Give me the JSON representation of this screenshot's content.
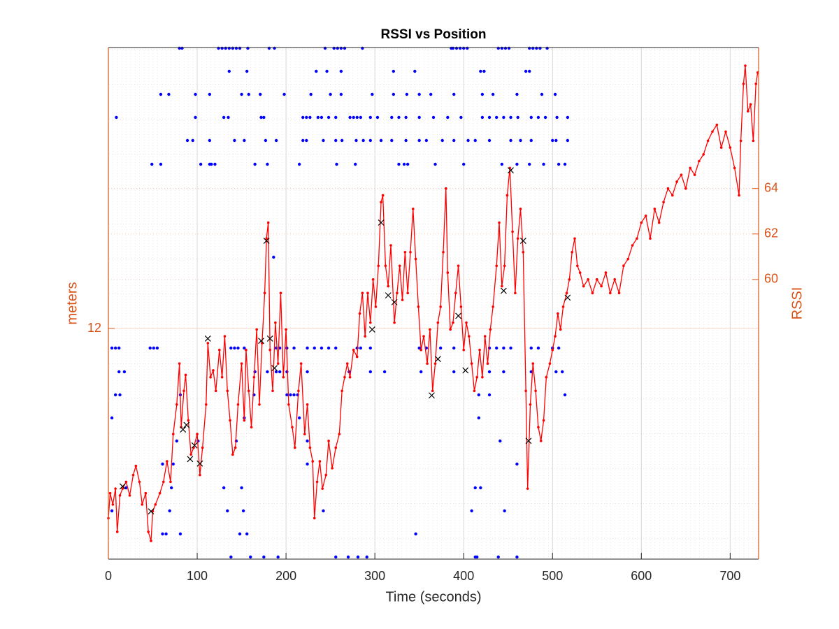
{
  "chart_data": {
    "type": "line",
    "title": "RSSI vs Position",
    "xlabel": "Time (seconds)",
    "ylabel": "meters",
    "y2label": "RSSI",
    "xlim": [
      0,
      732
    ],
    "xticks": [
      0,
      100,
      200,
      300,
      400,
      500,
      600,
      700
    ],
    "ylim": [
      5.4,
      20.04
    ],
    "yticks": [
      12
    ],
    "y2lim": [
      47.7,
      70.2
    ],
    "y2ticks": [
      60,
      62,
      64
    ],
    "grid": true,
    "axis_color": "#d95319",
    "series": [
      {
        "type": "line",
        "axis": "y2",
        "color": "#ff0000",
        "x": [
          0,
          2,
          5,
          8,
          10,
          13,
          16,
          20,
          24,
          28,
          31,
          35,
          38,
          42,
          45,
          48,
          50,
          53,
          58,
          62,
          66,
          70,
          73,
          77,
          80,
          82,
          85,
          87,
          90,
          93,
          96,
          100,
          103,
          106,
          110,
          112,
          115,
          118,
          121,
          125,
          128,
          131,
          134,
          137,
          140,
          143,
          146,
          150,
          153,
          155,
          158,
          161,
          164,
          167,
          170,
          173,
          176,
          178,
          180,
          182,
          185,
          188,
          191,
          194,
          197,
          200,
          203,
          207,
          210,
          214,
          217,
          221,
          224,
          227,
          230,
          232,
          235,
          238,
          241,
          245,
          248,
          252,
          256,
          260,
          263,
          266,
          269,
          272,
          276,
          280,
          283,
          286,
          289,
          292,
          295,
          298,
          301,
          304,
          307,
          309,
          312,
          315,
          318,
          322,
          325,
          328,
          331,
          334,
          337,
          340,
          343,
          346,
          349,
          352,
          355,
          359,
          362,
          365,
          368,
          371,
          374,
          377,
          380,
          382,
          385,
          388,
          391,
          394,
          397,
          400,
          403,
          406,
          409,
          412,
          415,
          418,
          421,
          424,
          427,
          430,
          433,
          437,
          440,
          443,
          446,
          449,
          452,
          455,
          458,
          461,
          464,
          467,
          470,
          472,
          475,
          478,
          481,
          484,
          487,
          490,
          493,
          497,
          500,
          503,
          506,
          509,
          512,
          516,
          519,
          522,
          525,
          528,
          531,
          535,
          540,
          545,
          550,
          555,
          560,
          565,
          570,
          575,
          580,
          585,
          590,
          595,
          600,
          605,
          610,
          615,
          620,
          625,
          630,
          635,
          640,
          645,
          650,
          655,
          660,
          665,
          670,
          675,
          680,
          685,
          690,
          695,
          700,
          705,
          710,
          712,
          715,
          717,
          720,
          723,
          726,
          729,
          731
        ],
        "values": [
          49.5,
          50.6,
          50.1,
          50.8,
          48.9,
          50.5,
          50.8,
          51.1,
          50.5,
          51.4,
          51.8,
          51.1,
          50.1,
          50.6,
          48.9,
          48.5,
          49.8,
          50.1,
          50.6,
          51.1,
          52.0,
          51.1,
          53.2,
          54.5,
          56.3,
          53.5,
          55.1,
          55.8,
          53.8,
          52.3,
          52.6,
          53.2,
          51.4,
          52.6,
          54.5,
          57.2,
          55.7,
          56.0,
          55.1,
          56.9,
          55.7,
          57.5,
          55.1,
          53.8,
          52.3,
          52.6,
          54.5,
          56.3,
          53.8,
          56.9,
          55.1,
          53.5,
          55.7,
          57.8,
          54.5,
          57.2,
          59.4,
          61.8,
          62.5,
          56.9,
          55.1,
          58.1,
          56.3,
          59.4,
          55.7,
          57.8,
          54.5,
          53.5,
          52.6,
          55.1,
          56.3,
          53.2,
          54.5,
          52.6,
          52.0,
          49.5,
          51.1,
          52.0,
          50.8,
          51.4,
          52.9,
          51.7,
          52.6,
          53.2,
          55.1,
          55.7,
          56.3,
          55.7,
          56.9,
          56.6,
          58.5,
          59.4,
          57.5,
          59.4,
          58.1,
          60.0,
          58.8,
          60.6,
          63.4,
          63.7,
          60.6,
          59.7,
          61.5,
          58.1,
          59.4,
          60.6,
          59.1,
          61.2,
          59.4,
          61.2,
          63.1,
          60.9,
          58.8,
          56.9,
          57.5,
          56.3,
          57.8,
          55.1,
          56.3,
          58.1,
          58.8,
          61.2,
          64.0,
          60.3,
          57.8,
          58.1,
          59.4,
          60.6,
          58.8,
          56.9,
          58.1,
          57.5,
          56.3,
          55.1,
          55.7,
          56.9,
          55.7,
          57.5,
          56.3,
          57.8,
          58.8,
          60.6,
          62.5,
          59.7,
          60.6,
          63.7,
          64.9,
          62.1,
          59.4,
          61.8,
          63.1,
          61.2,
          55.1,
          50.8,
          54.5,
          56.3,
          55.1,
          53.5,
          52.9,
          53.8,
          55.7,
          56.3,
          56.9,
          57.5,
          58.5,
          57.8,
          58.8,
          59.4,
          60.0,
          61.2,
          61.8,
          60.6,
          60.3,
          59.7,
          60.0,
          59.4,
          60.0,
          59.7,
          60.3,
          59.4,
          60.0,
          59.4,
          60.6,
          60.9,
          61.5,
          61.8,
          62.5,
          62.8,
          61.8,
          63.1,
          62.5,
          63.4,
          64.0,
          63.7,
          64.3,
          64.6,
          64.0,
          64.9,
          64.6,
          65.2,
          65.5,
          66.1,
          66.5,
          66.8,
          65.8,
          66.5,
          65.8,
          64.9,
          63.7,
          66.1,
          68.6,
          69.4,
          67.4,
          67.7,
          66.1,
          68.6,
          69.1
        ]
      },
      {
        "type": "scatter",
        "marker": "x",
        "axis": "y2",
        "color": "#000000",
        "x": [
          16,
          48,
          84,
          88,
          92,
          97,
          103,
          112,
          172,
          178,
          182,
          187,
          297,
          307,
          315,
          322,
          364,
          371,
          394,
          402,
          445,
          453,
          467,
          473,
          517
        ],
        "values": [
          50.9,
          49.8,
          53.4,
          53.6,
          52.1,
          52.7,
          51.9,
          57.4,
          57.3,
          61.7,
          57.4,
          56.1,
          57.8,
          62.5,
          59.3,
          59.0,
          54.9,
          56.5,
          58.4,
          56.0,
          59.5,
          64.8,
          61.7,
          52.9,
          59.2
        ]
      },
      {
        "type": "scatter",
        "marker": "dot",
        "axis": "y",
        "color": "#0000ff",
        "x": [
          80,
          83,
          124,
          128,
          132,
          136,
          140,
          144,
          148,
          157,
          181,
          187,
          244,
          254,
          258,
          262,
          266,
          286,
          386,
          388,
          392,
          396,
          400,
          404,
          439,
          443,
          447,
          451,
          474,
          478,
          482,
          486,
          494,
          136,
          156,
          234,
          246,
          262,
          321,
          345,
          419,
          423,
          470,
          474,
          59,
          68,
          98,
          114,
          150,
          158,
          171,
          198,
          228,
          250,
          262,
          297,
          321,
          336,
          350,
          363,
          389,
          421,
          433,
          460,
          488,
          503,
          9,
          98,
          130,
          135,
          172,
          175,
          219,
          223,
          227,
          236,
          240,
          248,
          256,
          272,
          276,
          280,
          284,
          295,
          303,
          319,
          327,
          335,
          350,
          366,
          382,
          397,
          421,
          429,
          437,
          445,
          453,
          461,
          476,
          484,
          492,
          505,
          517,
          89,
          95,
          114,
          142,
          153,
          177,
          189,
          219,
          223,
          242,
          256,
          263,
          279,
          287,
          295,
          307,
          319,
          335,
          350,
          358,
          376,
          389,
          405,
          413,
          429,
          453,
          464,
          476,
          500,
          504,
          517,
          49,
          59,
          104,
          114,
          116,
          120,
          165,
          179,
          215,
          257,
          278,
          327,
          333,
          337,
          368,
          400,
          443,
          460,
          474,
          490,
          507,
          514,
          186,
          4,
          8,
          12,
          47,
          51,
          55,
          138,
          142,
          146,
          153,
          189,
          193,
          201,
          209,
          224,
          232,
          240,
          248,
          256,
          280,
          284,
          295,
          350,
          358,
          374,
          389,
          429,
          437,
          445,
          453,
          476,
          484,
          500,
          507,
          12,
          18,
          165,
          179,
          189,
          193,
          201,
          224,
          271,
          295,
          311,
          352,
          389,
          429,
          445,
          476,
          504,
          511,
          8,
          13,
          81,
          164,
          201,
          205,
          209,
          213,
          417,
          429,
          514,
          4,
          153,
          215,
          417,
          77,
          101,
          144,
          224,
          441,
          61,
          73,
          224,
          460,
          20,
          71,
          130,
          150,
          413,
          419,
          4,
          69,
          134,
          152,
          242,
          409,
          446,
          61,
          65,
          81,
          148,
          156,
          346,
          138,
          160,
          175,
          191,
          256,
          270,
          281,
          291,
          413,
          415,
          439,
          460
        ],
        "values": [
          20.02,
          20.02,
          20.02,
          20.02,
          20.02,
          20.02,
          20.02,
          20.02,
          20.02,
          20.02,
          20.02,
          20.02,
          20.02,
          20.02,
          20.02,
          20.02,
          20.02,
          20.02,
          20.02,
          20.02,
          20.02,
          20.02,
          20.02,
          20.02,
          20.02,
          20.02,
          20.02,
          20.02,
          20.02,
          20.02,
          20.02,
          20.02,
          20.02,
          19.36,
          19.36,
          19.36,
          19.36,
          19.36,
          19.36,
          19.36,
          19.36,
          19.36,
          19.36,
          19.36,
          18.7,
          18.7,
          18.7,
          18.7,
          18.7,
          18.7,
          18.7,
          18.7,
          18.7,
          18.7,
          18.7,
          18.7,
          18.7,
          18.7,
          18.7,
          18.7,
          18.7,
          18.7,
          18.7,
          18.7,
          18.7,
          18.7,
          18.04,
          18.04,
          18.04,
          18.04,
          18.04,
          18.04,
          18.04,
          18.04,
          18.04,
          18.04,
          18.04,
          18.04,
          18.04,
          18.04,
          18.04,
          18.04,
          18.04,
          18.04,
          18.04,
          18.04,
          18.04,
          18.04,
          18.04,
          18.04,
          18.04,
          18.04,
          18.04,
          18.04,
          18.04,
          18.04,
          18.04,
          18.04,
          18.04,
          18.04,
          18.04,
          18.04,
          18.04,
          17.38,
          17.38,
          17.38,
          17.38,
          17.38,
          17.38,
          17.38,
          17.38,
          17.38,
          17.38,
          17.38,
          17.38,
          17.38,
          17.38,
          17.38,
          17.38,
          17.38,
          17.38,
          17.38,
          17.38,
          17.38,
          17.38,
          17.38,
          17.38,
          17.38,
          17.38,
          17.38,
          17.38,
          17.38,
          17.38,
          17.38,
          16.7,
          16.7,
          16.7,
          16.7,
          16.7,
          16.7,
          16.7,
          16.7,
          16.7,
          16.7,
          16.7,
          16.7,
          16.7,
          16.7,
          16.7,
          16.7,
          16.7,
          16.7,
          16.7,
          16.7,
          16.7,
          16.7,
          14.04,
          11.44,
          11.44,
          11.44,
          11.44,
          11.44,
          11.44,
          11.44,
          11.44,
          11.44,
          11.44,
          11.44,
          11.44,
          11.44,
          11.44,
          11.44,
          11.44,
          11.44,
          11.44,
          11.44,
          11.44,
          11.44,
          11.44,
          11.44,
          11.44,
          11.44,
          11.44,
          11.44,
          11.44,
          11.44,
          11.44,
          11.44,
          11.44,
          11.44,
          11.44,
          10.76,
          10.76,
          10.76,
          10.76,
          10.76,
          10.76,
          10.76,
          10.76,
          10.76,
          10.76,
          10.76,
          10.76,
          10.76,
          10.76,
          10.76,
          10.76,
          10.76,
          10.76,
          10.1,
          10.1,
          10.1,
          10.1,
          10.1,
          10.1,
          10.1,
          10.1,
          10.1,
          10.1,
          10.1,
          9.44,
          9.44,
          9.44,
          9.44,
          8.78,
          8.78,
          8.78,
          8.78,
          8.78,
          8.12,
          8.12,
          8.12,
          8.12,
          7.44,
          7.44,
          7.44,
          7.44,
          7.44,
          7.44,
          6.78,
          6.78,
          6.78,
          6.78,
          6.78,
          6.78,
          6.78,
          6.12,
          6.12,
          6.12,
          6.12,
          6.12,
          6.12,
          5.46,
          5.46,
          5.46,
          5.46,
          5.46,
          5.46,
          5.46,
          5.46,
          5.46,
          5.46,
          5.46,
          5.46
        ]
      }
    ]
  }
}
